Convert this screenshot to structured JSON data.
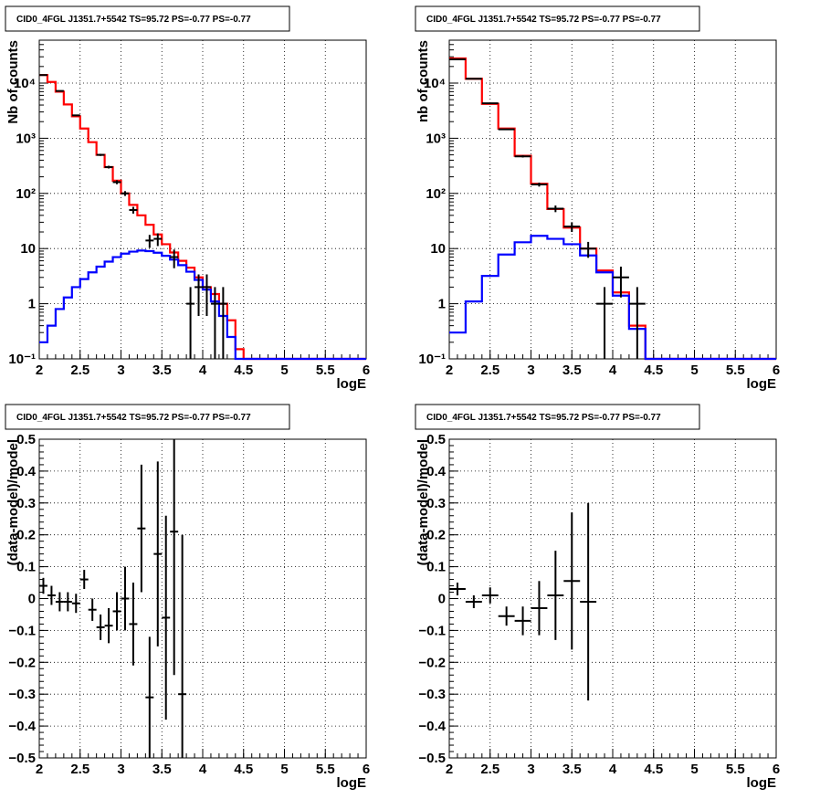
{
  "chart_data": [
    {
      "type": "line",
      "title": "CID0_4FGL J1351.7+5542 TS=95.72 PS=-0.77 PS=-0.77",
      "xlabel": "logE",
      "ylabel": "Nb of counts",
      "xlim": [
        2,
        6
      ],
      "ylim": [
        0.1,
        60000
      ],
      "ylog": true,
      "grid": true,
      "x_ticks": [
        "2",
        "2.5",
        "3",
        "3.5",
        "4",
        "4.5",
        "5",
        "5.5",
        "6"
      ],
      "y_ticks": [
        "10⁻¹",
        "1",
        "10",
        "10²",
        "10³",
        "10⁴"
      ],
      "bin_edges": [
        2.0,
        2.1,
        2.2,
        2.3,
        2.4,
        2.5,
        2.6,
        2.7,
        2.8,
        2.9,
        3.0,
        3.1,
        3.2,
        3.3,
        3.4,
        3.5,
        3.6,
        3.7,
        3.8,
        3.9,
        4.0,
        4.1,
        4.2,
        4.3,
        4.4,
        4.5,
        4.6,
        4.7,
        4.8,
        4.9,
        5.0,
        5.1,
        5.2,
        5.3,
        5.4,
        5.5,
        5.6,
        5.7,
        5.8,
        5.9,
        6.0
      ],
      "series": [
        {
          "color": "#ff0000",
          "values": [
            14000,
            10500,
            7000,
            4100,
            2500,
            1500,
            850,
            500,
            300,
            170,
            100,
            62,
            40,
            27,
            18,
            12,
            8.5,
            6,
            4.5,
            3,
            2,
            1.5,
            1,
            0.5,
            0.15,
            0.1,
            0.1,
            0.1,
            0.1,
            0.1,
            0.1,
            0.1,
            0.1,
            0.1,
            0.1,
            0.1,
            0.1,
            0.1,
            0.1,
            0.1
          ]
        },
        {
          "color": "#0000ff",
          "values": [
            0.2,
            0.4,
            0.8,
            1.3,
            2,
            2.8,
            3.7,
            4.7,
            5.8,
            7,
            8.1,
            8.8,
            9.2,
            9,
            8.4,
            7.4,
            6.3,
            5,
            3.8,
            2.7,
            1.8,
            1.1,
            0.6,
            0.25,
            0.1,
            0.1,
            0.1,
            0.1,
            0.1,
            0.1,
            0.1,
            0.1,
            0.1,
            0.1,
            0.1,
            0.1,
            0.1,
            0.1,
            0.1,
            0.1
          ]
        }
      ],
      "points": [
        {
          "x": 2.05,
          "y": 14000,
          "elo": 120,
          "ehi": 120
        },
        {
          "x": 2.25,
          "y": 7200,
          "elo": 85,
          "ehi": 85
        },
        {
          "x": 2.45,
          "y": 2600,
          "elo": 51,
          "ehi": 51
        },
        {
          "x": 2.75,
          "y": 500,
          "elo": 22,
          "ehi": 22
        },
        {
          "x": 2.85,
          "y": 300,
          "elo": 17,
          "ehi": 17
        },
        {
          "x": 2.95,
          "y": 160,
          "elo": 13,
          "ehi": 13
        },
        {
          "x": 3.05,
          "y": 100,
          "elo": 10,
          "ehi": 10
        },
        {
          "x": 3.15,
          "y": 50,
          "elo": 7,
          "ehi": 7
        },
        {
          "x": 3.35,
          "y": 14,
          "elo": 3.7,
          "ehi": 3.7
        },
        {
          "x": 3.45,
          "y": 15,
          "elo": 3.9,
          "ehi": 3.9
        },
        {
          "x": 3.65,
          "y": 7,
          "elo": 2.6,
          "ehi": 2.6
        },
        {
          "x": 3.85,
          "y": 1,
          "elo": 0.9,
          "ehi": 1
        },
        {
          "x": 3.95,
          "y": 2,
          "elo": 1.4,
          "ehi": 1.4
        },
        {
          "x": 4.05,
          "y": 2,
          "elo": 1.4,
          "ehi": 1.4
        },
        {
          "x": 4.15,
          "y": 1,
          "elo": 0.9,
          "ehi": 1
        },
        {
          "x": 4.25,
          "y": 1,
          "elo": 0.9,
          "ehi": 1
        }
      ]
    },
    {
      "type": "line",
      "title": "CID0_4FGL J1351.7+5542 TS=95.72 PS=-0.77 PS=-0.77",
      "xlabel": "logE",
      "ylabel": "nb of counts",
      "xlim": [
        2,
        6
      ],
      "ylim": [
        0.1,
        60000
      ],
      "ylog": true,
      "grid": true,
      "x_ticks": [
        "2",
        "2.5",
        "3",
        "3.5",
        "4",
        "4.5",
        "5",
        "5.5",
        "6"
      ],
      "y_ticks": [
        "10⁻¹",
        "1",
        "10",
        "10²",
        "10³",
        "10⁴"
      ],
      "bin_edges": [
        2.0,
        2.2,
        2.4,
        2.6,
        2.8,
        3.0,
        3.2,
        3.4,
        3.6,
        3.8,
        4.0,
        4.2,
        4.4,
        4.6,
        4.8,
        5.0,
        5.2,
        5.4,
        5.6,
        5.8,
        6.0
      ],
      "series": [
        {
          "color": "#ff0000",
          "values": [
            28000,
            12000,
            4200,
            1500,
            480,
            150,
            52,
            24,
            10,
            4,
            1.6,
            0.4,
            0.1,
            0.1,
            0.1,
            0.1,
            0.1,
            0.1,
            0.1,
            0.1
          ]
        },
        {
          "color": "#0000ff",
          "values": [
            0.3,
            1.1,
            3.2,
            7.8,
            13,
            17,
            15,
            12,
            7.5,
            3.7,
            1.4,
            0.35,
            0.1,
            0.1,
            0.1,
            0.1,
            0.1,
            0.1,
            0.1,
            0.1
          ]
        }
      ],
      "points": [
        {
          "x": 2.1,
          "y": 27000,
          "elo": 165,
          "ehi": 165
        },
        {
          "x": 2.3,
          "y": 12000,
          "elo": 110,
          "ehi": 110
        },
        {
          "x": 2.5,
          "y": 4300,
          "elo": 66,
          "ehi": 66
        },
        {
          "x": 2.7,
          "y": 1450,
          "elo": 38,
          "ehi": 38
        },
        {
          "x": 2.9,
          "y": 470,
          "elo": 22,
          "ehi": 22
        },
        {
          "x": 3.1,
          "y": 145,
          "elo": 12,
          "ehi": 12
        },
        {
          "x": 3.3,
          "y": 53,
          "elo": 7.3,
          "ehi": 7.3
        },
        {
          "x": 3.5,
          "y": 25,
          "elo": 5,
          "ehi": 5
        },
        {
          "x": 3.7,
          "y": 10,
          "elo": 3.2,
          "ehi": 3.2
        },
        {
          "x": 3.9,
          "y": 1,
          "elo": 0.9,
          "ehi": 1
        },
        {
          "x": 4.1,
          "y": 3,
          "elo": 1.7,
          "ehi": 1.7
        },
        {
          "x": 4.3,
          "y": 1,
          "elo": 0.9,
          "ehi": 1
        }
      ]
    },
    {
      "type": "scatter",
      "title": "CID0_4FGL J1351.7+5542 TS=95.72 PS=-0.77 PS=-0.77",
      "xlabel": "logE",
      "ylabel": "(data-model)/model",
      "xlim": [
        2,
        6
      ],
      "ylim": [
        -0.5,
        0.5
      ],
      "ylog": false,
      "grid": true,
      "x_ticks": [
        "2",
        "2.5",
        "3",
        "3.5",
        "4",
        "4.5",
        "5",
        "5.5",
        "6"
      ],
      "y_ticks": [
        "−0.5",
        "−0.4",
        "−0.3",
        "−0.2",
        "−0.1",
        "0",
        "0.1",
        "0.2",
        "0.3",
        "0.4",
        "0.5"
      ],
      "xerr": 0.05,
      "points": [
        {
          "x": 2.05,
          "y": 0.04,
          "elo": 0.025,
          "ehi": 0.025
        },
        {
          "x": 2.15,
          "y": 0.01,
          "elo": 0.03,
          "ehi": 0.03
        },
        {
          "x": 2.25,
          "y": -0.01,
          "elo": 0.03,
          "ehi": 0.03
        },
        {
          "x": 2.35,
          "y": -0.01,
          "elo": 0.03,
          "ehi": 0.03
        },
        {
          "x": 2.45,
          "y": -0.015,
          "elo": 0.03,
          "ehi": 0.03
        },
        {
          "x": 2.55,
          "y": 0.06,
          "elo": 0.03,
          "ehi": 0.03
        },
        {
          "x": 2.65,
          "y": -0.035,
          "elo": 0.035,
          "ehi": 0.035
        },
        {
          "x": 2.75,
          "y": -0.09,
          "elo": 0.04,
          "ehi": 0.04
        },
        {
          "x": 2.85,
          "y": -0.085,
          "elo": 0.055,
          "ehi": 0.055
        },
        {
          "x": 2.95,
          "y": -0.04,
          "elo": 0.06,
          "ehi": 0.06
        },
        {
          "x": 3.05,
          "y": 0.0,
          "elo": 0.1,
          "ehi": 0.1
        },
        {
          "x": 3.15,
          "y": -0.08,
          "elo": 0.13,
          "ehi": 0.13
        },
        {
          "x": 3.25,
          "y": 0.22,
          "elo": 0.2,
          "ehi": 0.2
        },
        {
          "x": 3.35,
          "y": -0.31,
          "elo": 0.19,
          "ehi": 0.19
        },
        {
          "x": 3.45,
          "y": 0.14,
          "elo": 0.29,
          "ehi": 0.29
        },
        {
          "x": 3.55,
          "y": -0.06,
          "elo": 0.32,
          "ehi": 0.32
        },
        {
          "x": 3.65,
          "y": 0.21,
          "elo": 0.45,
          "ehi": 0.45
        },
        {
          "x": 3.75,
          "y": -0.3,
          "elo": 0.5,
          "ehi": 0.5
        }
      ]
    },
    {
      "type": "scatter",
      "title": "CID0_4FGL J1351.7+5542 TS=95.72 PS=-0.77 PS=-0.77",
      "xlabel": "logE",
      "ylabel": "(data-model)/model",
      "xlim": [
        2,
        6
      ],
      "ylim": [
        -0.5,
        0.5
      ],
      "ylog": false,
      "grid": true,
      "x_ticks": [
        "2",
        "2.5",
        "3",
        "3.5",
        "4",
        "4.5",
        "5",
        "5.5",
        "6"
      ],
      "y_ticks": [
        "−0.5",
        "−0.4",
        "−0.3",
        "−0.2",
        "−0.1",
        "0",
        "0.1",
        "0.2",
        "0.3",
        "0.4",
        "0.5"
      ],
      "xerr": 0.1,
      "points": [
        {
          "x": 2.1,
          "y": 0.03,
          "elo": 0.02,
          "ehi": 0.02
        },
        {
          "x": 2.3,
          "y": -0.01,
          "elo": 0.02,
          "ehi": 0.02
        },
        {
          "x": 2.5,
          "y": 0.01,
          "elo": 0.025,
          "ehi": 0.025
        },
        {
          "x": 2.7,
          "y": -0.055,
          "elo": 0.03,
          "ehi": 0.03
        },
        {
          "x": 2.9,
          "y": -0.07,
          "elo": 0.045,
          "ehi": 0.045
        },
        {
          "x": 3.1,
          "y": -0.03,
          "elo": 0.085,
          "ehi": 0.085
        },
        {
          "x": 3.3,
          "y": 0.01,
          "elo": 0.14,
          "ehi": 0.14
        },
        {
          "x": 3.5,
          "y": 0.055,
          "elo": 0.215,
          "ehi": 0.215
        },
        {
          "x": 3.7,
          "y": -0.01,
          "elo": 0.31,
          "ehi": 0.31
        }
      ]
    }
  ]
}
